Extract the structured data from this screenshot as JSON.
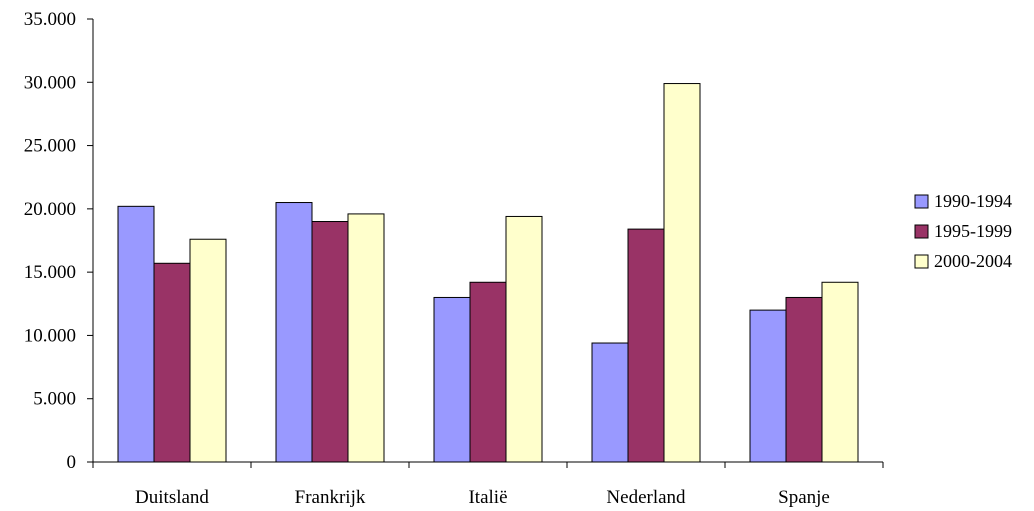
{
  "chart_data": {
    "type": "bar",
    "title": "",
    "xlabel": "",
    "ylabel": "",
    "categories": [
      "Duitsland",
      "Frankrijk",
      "Italië",
      "Nederland",
      "Spanje"
    ],
    "series": [
      {
        "name": "1990-1994",
        "color": "#9999ff",
        "values": [
          20200,
          20500,
          13000,
          9400,
          12000
        ]
      },
      {
        "name": "1995-1999",
        "color": "#993366",
        "values": [
          15700,
          19000,
          14200,
          18400,
          13000
        ]
      },
      {
        "name": "2000-2004",
        "color": "#ffffcc",
        "values": [
          17600,
          19600,
          19400,
          29900,
          14200
        ]
      }
    ],
    "ylim": [
      0,
      35000
    ],
    "yticks": [
      0,
      5000,
      10000,
      15000,
      20000,
      25000,
      30000,
      35000
    ],
    "ytick_labels": [
      "0",
      "5.000",
      "10.000",
      "15.000",
      "20.000",
      "25.000",
      "30.000",
      "35.000"
    ],
    "grid": false,
    "legend_position": "right"
  }
}
